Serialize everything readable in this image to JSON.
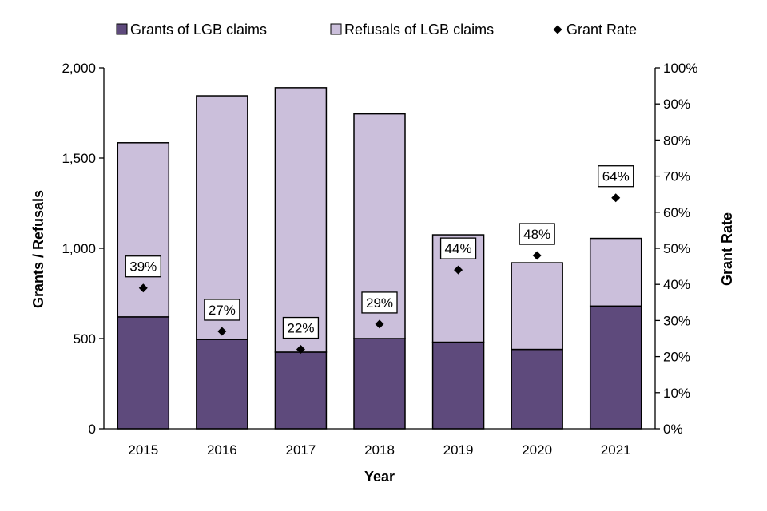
{
  "chart_data": {
    "type": "bar",
    "stacked": true,
    "categories": [
      "2015",
      "2016",
      "2017",
      "2018",
      "2019",
      "2020",
      "2021"
    ],
    "series": [
      {
        "name": "Grants of LGB claims",
        "values": [
          620,
          495,
          425,
          500,
          480,
          440,
          680
        ],
        "color": "#5e4a7c",
        "axis": "left"
      },
      {
        "name": "Refusals of LGB claims",
        "values": [
          965,
          1350,
          1465,
          1245,
          595,
          480,
          375
        ],
        "color": "#cbbfdb",
        "axis": "left"
      }
    ],
    "rate_series": {
      "name": "Grant Rate",
      "values": [
        39,
        27,
        22,
        29,
        44,
        48,
        64
      ],
      "labels": [
        "39%",
        "27%",
        "22%",
        "29%",
        "44%",
        "48%",
        "64%"
      ],
      "marker": "diamond",
      "color": "#000000",
      "axis": "right"
    },
    "xlabel": "Year",
    "ylabel": "Grants / Refusals",
    "y2label": "Grant Rate",
    "ylim": [
      0,
      2000
    ],
    "y_ticks": [
      0,
      500,
      1000,
      1500,
      2000
    ],
    "y_tick_labels": [
      "0",
      "500",
      "1,000",
      "1,500",
      "2,000"
    ],
    "y2lim": [
      0,
      100
    ],
    "y2_ticks": [
      0,
      10,
      20,
      30,
      40,
      50,
      60,
      70,
      80,
      90,
      100
    ],
    "y2_tick_labels": [
      "0%",
      "10%",
      "20%",
      "30%",
      "40%",
      "50%",
      "60%",
      "70%",
      "80%",
      "90%",
      "100%"
    ],
    "legend_position": "top",
    "grid": false
  }
}
